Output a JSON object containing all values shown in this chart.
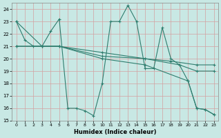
{
  "xlabel": "Humidex (Indice chaleur)",
  "xlim": [
    -0.5,
    23.5
  ],
  "ylim": [
    15,
    24.5
  ],
  "yticks": [
    15,
    16,
    17,
    18,
    19,
    20,
    21,
    22,
    23,
    24
  ],
  "xticks": [
    0,
    1,
    2,
    3,
    4,
    5,
    6,
    7,
    8,
    9,
    10,
    11,
    12,
    13,
    14,
    15,
    16,
    17,
    18,
    19,
    20,
    21,
    22,
    23
  ],
  "bg_color": "#c8e8e4",
  "grid_color": "#b0d4d0",
  "line_color": "#2e7d6e",
  "series": [
    {
      "x": [
        0,
        1,
        2,
        3,
        4,
        5,
        6,
        7,
        8,
        9,
        10,
        11,
        12,
        13,
        14,
        15,
        16,
        17,
        18,
        19,
        20,
        21,
        22,
        23
      ],
      "y": [
        23,
        21.5,
        21,
        21,
        22.2,
        23.2,
        16.0,
        16.0,
        15.8,
        15.4,
        18.0,
        23.0,
        23.0,
        24.3,
        23.0,
        19.2,
        19.2,
        22.5,
        20.0,
        19.5,
        18.2,
        16.0,
        15.9,
        15.5
      ]
    },
    {
      "comment": "upper diagonal line 0,23 -> 23,19.5",
      "x": [
        0,
        3,
        5,
        10,
        15,
        18,
        21,
        23
      ],
      "y": [
        23,
        21,
        21,
        20.2,
        20.0,
        19.8,
        19.5,
        19.5
      ]
    },
    {
      "x": [
        0,
        3,
        5,
        10,
        15,
        19,
        21,
        23
      ],
      "y": [
        21,
        21,
        21,
        20.5,
        20.0,
        19.5,
        19.0,
        19.0
      ]
    },
    {
      "comment": "lower diagonal line 0,21 -> 23,15.5",
      "x": [
        0,
        3,
        5,
        10,
        15,
        20,
        21,
        22,
        23
      ],
      "y": [
        21,
        21,
        21,
        20.0,
        19.5,
        18.2,
        16.0,
        15.9,
        15.5
      ]
    }
  ]
}
